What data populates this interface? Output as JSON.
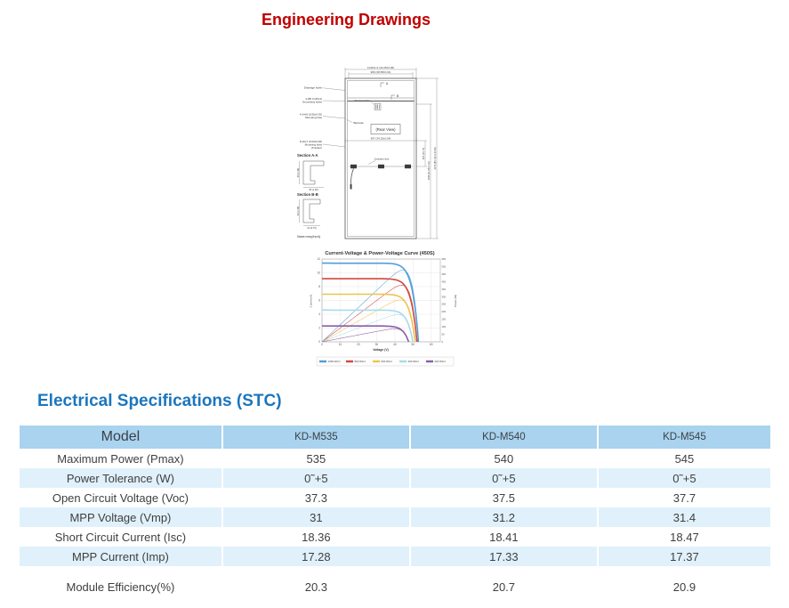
{
  "page": {
    "title": "Engineering Drawings"
  },
  "drawing": {
    "dim_top_outer": "1134±1.9 (44.65±0.08)",
    "dim_top_inner": "980 (38.58±0.04)",
    "marker_a": "A",
    "marker_b": "B",
    "label_drainage": "Drainage holes",
    "label_grounding1": "4-Φ5.0 (Φ0.2)",
    "label_grounding2": "Grounding holes",
    "label_mounting1": "4-14x9 (0.55x0.35)",
    "label_mounting2": "Mounting hole",
    "label_slots1": "8-16x7 (0.63x0.28)",
    "label_slots2": "Mounting slots",
    "label_slots3": "(Tracker)",
    "label_product": "Product label",
    "label_barcode": "Barcode",
    "rear_view": "(Rear View)",
    "dim_mid": "997 (39.25±0.04)",
    "label_jbox": "Junction box",
    "dim_right_inner": "400 (15.75)",
    "dim_right_mid": "1048 (41.26±0.04)",
    "dim_right_outer": "2279 (89.72)±2 (0.08)",
    "section_a": "Section A-A",
    "dim_sec_a_v": "35 (1.38)",
    "dim_sec_a_h": "35 (1.38)",
    "section_b": "Section B-B",
    "dim_sec_b_v": "35 (1.38)",
    "dim_sec_b_h": "20 (0.79)",
    "note": "Note:mm(inch)"
  },
  "chart_data": {
    "type": "line",
    "title": "Current-Voltage & Power-Voltage Curve (450S)",
    "xlabel": "Voltage (V)",
    "ylabel_left": "Current (A)",
    "ylabel_right": "Power (W)",
    "x_range": [
      0,
      65
    ],
    "y_left_range": [
      0,
      12
    ],
    "y_right_range": [
      0,
      550
    ],
    "x_ticks": [
      0,
      10,
      20,
      30,
      40,
      50,
      60
    ],
    "y_left_ticks": [
      0,
      2,
      4,
      6,
      8,
      10,
      12
    ],
    "y_right_ticks": [
      0,
      50,
      100,
      150,
      200,
      250,
      300,
      350,
      400,
      450,
      500,
      550
    ],
    "grid": true,
    "legend_position": "bottom",
    "series": [
      {
        "name": "1000 W/m²",
        "color": "#4f9ed8",
        "isc": 11.4,
        "voc": 53.0
      },
      {
        "name": "800 W/m²",
        "color": "#d2473f",
        "isc": 9.15,
        "voc": 52.2
      },
      {
        "name": "600 W/m²",
        "color": "#eec44d",
        "isc": 6.9,
        "voc": 51.2
      },
      {
        "name": "400 W/m²",
        "color": "#a6dbee",
        "isc": 4.6,
        "voc": 49.9
      },
      {
        "name": "200 W/m²",
        "color": "#8a5ca8",
        "isc": 2.3,
        "voc": 47.6
      }
    ]
  },
  "specs": {
    "heading": "Electrical Specifications (STC)",
    "table": {
      "model_label": "Model",
      "columns": [
        "KD-M535",
        "KD-M540",
        "KD-M545"
      ],
      "rows": [
        {
          "label": "Maximum Power (Pmax)",
          "values": [
            "535",
            "540",
            "545"
          ]
        },
        {
          "label": "Power Tolerance (W)",
          "values": [
            "0˜+5",
            "0˜+5",
            "0˜+5"
          ]
        },
        {
          "label": "Open Circuit Voltage (Voc)",
          "values": [
            "37.3",
            "37.5",
            "37.7"
          ]
        },
        {
          "label": "MPP Voltage (Vmp)",
          "values": [
            "31",
            "31.2",
            "31.4"
          ]
        },
        {
          "label": "Short Circuit Current (Isc)",
          "values": [
            "18.36",
            "18.41",
            "18.47"
          ]
        },
        {
          "label": "MPP Current (Imp)",
          "values": [
            "17.28",
            "17.33",
            "17.37"
          ]
        },
        {
          "label": "Module Efficiency(%)",
          "values": [
            "20.3",
            "20.7",
            "20.9"
          ]
        }
      ]
    }
  }
}
